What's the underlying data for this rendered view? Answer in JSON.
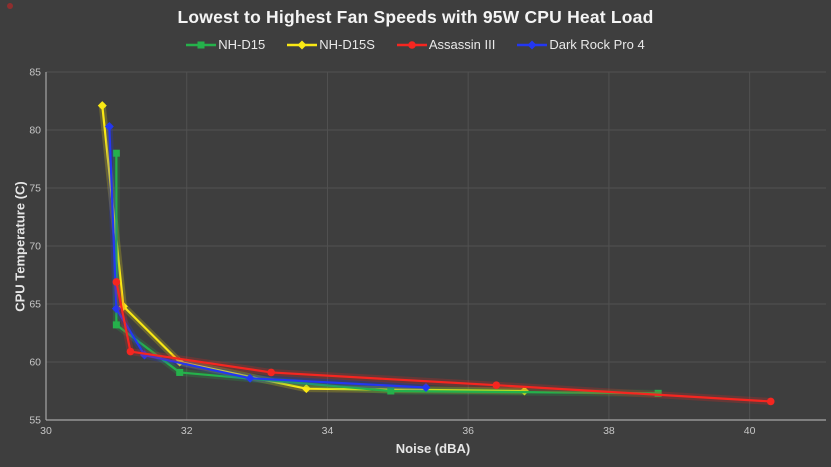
{
  "status_dot_color": "#8f2e2e",
  "chart_data": {
    "type": "line",
    "title": "Lowest to Highest Fan Speeds with 95W CPU Heat Load",
    "xlabel": "Noise (dBA)",
    "ylabel": "CPU Temperature (C)",
    "xlim": [
      30,
      41
    ],
    "ylim": [
      55,
      85
    ],
    "x_ticks": [
      30,
      32,
      34,
      36,
      38,
      40
    ],
    "y_ticks": [
      55,
      60,
      65,
      70,
      75,
      80,
      85
    ],
    "grid": true,
    "legend_position": "top-center",
    "background_color": "#3e3e3e",
    "gridline_color": "#515151",
    "axis_line_color": "#a6a6a6",
    "tick_label_color": "#c6c6c6",
    "series": [
      {
        "name": "NH-D15",
        "color": "#25b14b",
        "marker": "square",
        "points": [
          [
            31.0,
            78.0
          ],
          [
            31.0,
            63.2
          ],
          [
            31.9,
            59.1
          ],
          [
            34.9,
            57.5
          ],
          [
            38.7,
            57.3
          ]
        ]
      },
      {
        "name": "NH-D15S",
        "color": "#f9e814",
        "marker": "diamond",
        "points": [
          [
            30.8,
            82.1
          ],
          [
            31.1,
            64.8
          ],
          [
            31.9,
            60.0
          ],
          [
            33.7,
            57.7
          ],
          [
            36.8,
            57.5
          ]
        ]
      },
      {
        "name": "Assassin III",
        "color": "#f52620",
        "marker": "circle",
        "points": [
          [
            31.0,
            66.9
          ],
          [
            31.2,
            60.9
          ],
          [
            33.2,
            59.1
          ],
          [
            36.4,
            58.0
          ],
          [
            40.3,
            56.6
          ]
        ]
      },
      {
        "name": "Dark Rock Pro 4",
        "color": "#2337f2",
        "marker": "diamond",
        "points": [
          [
            30.9,
            80.3
          ],
          [
            31.0,
            64.6
          ],
          [
            31.4,
            60.6
          ],
          [
            32.9,
            58.6
          ],
          [
            35.4,
            57.8
          ]
        ]
      }
    ]
  }
}
